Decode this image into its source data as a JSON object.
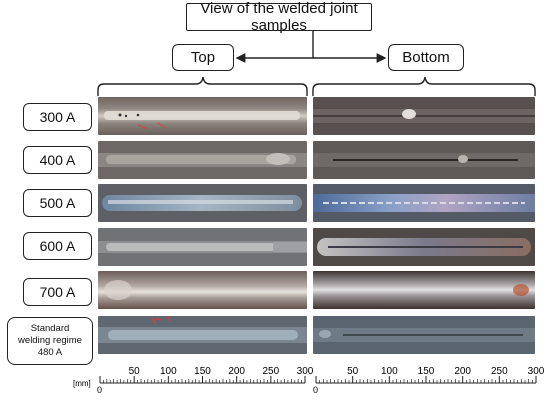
{
  "title": "View of the welded joint samples",
  "columns": {
    "top": "Top",
    "bottom": "Bottom"
  },
  "rows": [
    {
      "label": "300 A"
    },
    {
      "label": "400 A"
    },
    {
      "label": "500 A"
    },
    {
      "label": "600 A"
    },
    {
      "label": "700 A"
    },
    {
      "label_lines": [
        "Standard",
        "welding regime",
        "480 A"
      ]
    }
  ],
  "ruler": {
    "unit": "[mm]",
    "origin": "0",
    "ticks": [
      "50",
      "100",
      "150",
      "200",
      "250",
      "300"
    ]
  }
}
